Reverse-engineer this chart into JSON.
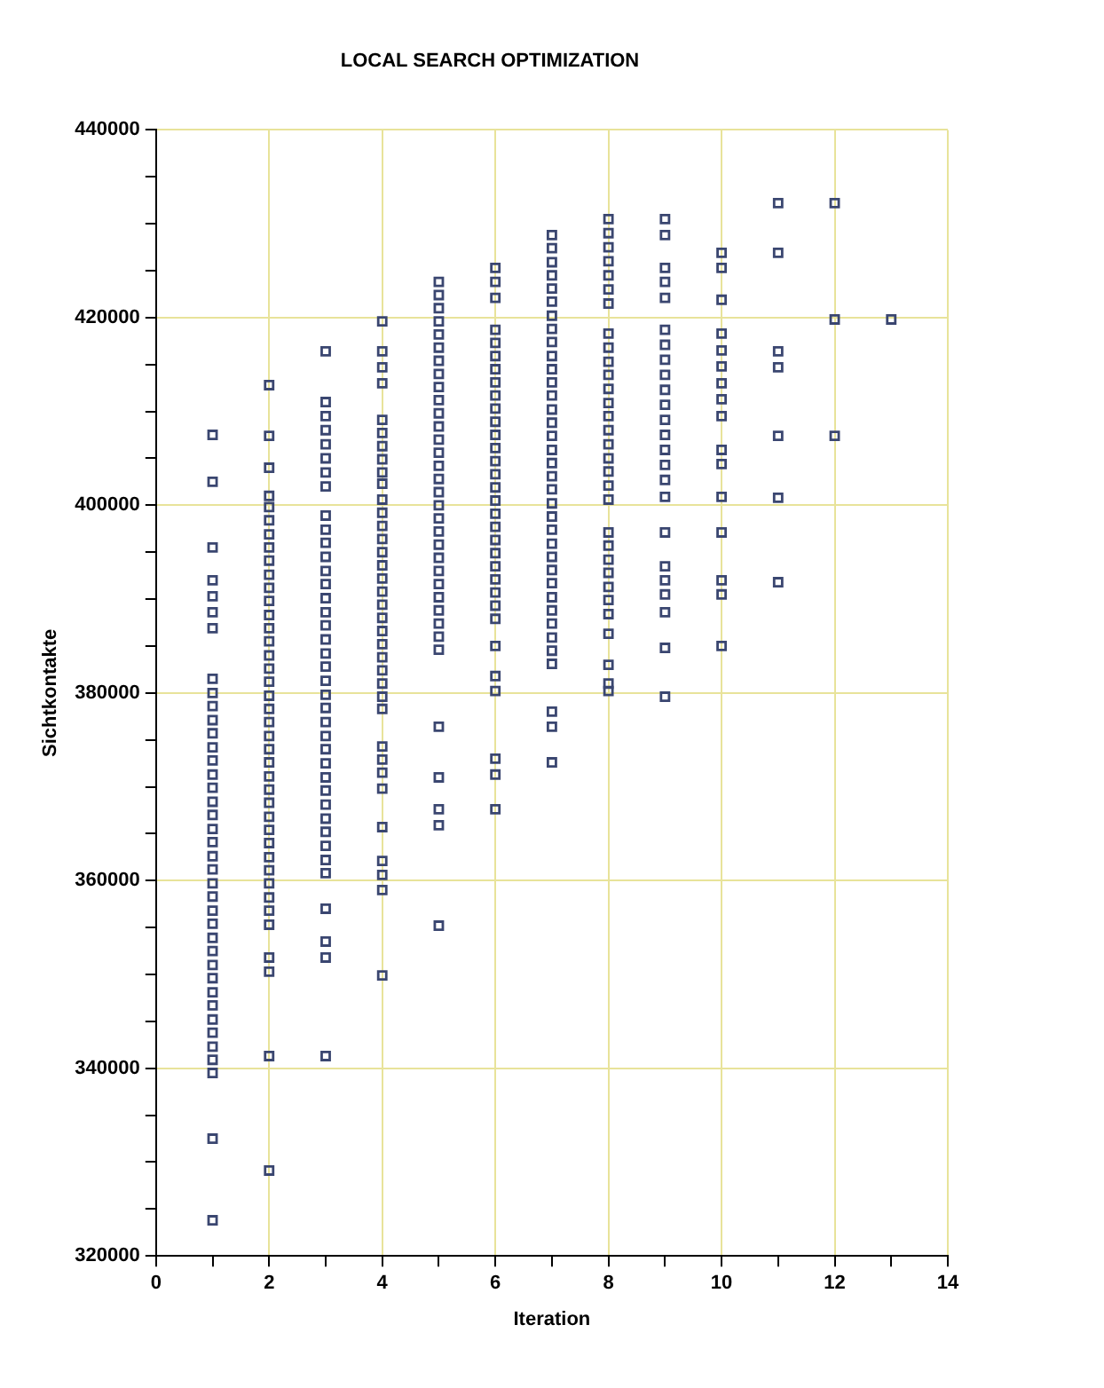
{
  "chart_data": {
    "type": "scatter",
    "title": "LOCAL SEARCH OPTIMIZATION",
    "xlabel": "Iteration",
    "ylabel": "Sichtkontakte",
    "marker": "square",
    "grid": true,
    "legend": false,
    "xlim": [
      0,
      14
    ],
    "xticks": [
      0,
      {
        "value": 1,
        "label": null
      },
      2,
      {
        "value": 3,
        "label": null
      },
      4,
      {
        "value": 5,
        "label": null
      },
      6,
      {
        "value": 7,
        "label": null
      },
      8,
      {
        "value": 9,
        "label": null
      },
      10,
      {
        "value": 11,
        "label": null
      },
      12,
      {
        "value": 13,
        "label": null
      },
      14
    ],
    "ylim": [
      320000,
      440000
    ],
    "yticks": [
      320000,
      {
        "value": 325000,
        "label": null
      },
      {
        "value": 330000,
        "label": null
      },
      {
        "value": 335000,
        "label": null
      },
      340000,
      {
        "value": 345000,
        "label": null
      },
      {
        "value": 350000,
        "label": null
      },
      {
        "value": 355000,
        "label": null
      },
      360000,
      {
        "value": 365000,
        "label": null
      },
      {
        "value": 370000,
        "label": null
      },
      {
        "value": 375000,
        "label": null
      },
      380000,
      {
        "value": 385000,
        "label": null
      },
      {
        "value": 390000,
        "label": null
      },
      {
        "value": 395000,
        "label": null
      },
      400000,
      {
        "value": 405000,
        "label": null
      },
      {
        "value": 410000,
        "label": null
      },
      {
        "value": 415000,
        "label": null
      },
      420000,
      {
        "value": 425000,
        "label": null
      },
      {
        "value": 430000,
        "label": null
      },
      {
        "value": 435000,
        "label": null
      },
      440000
    ],
    "series": [
      {
        "color": "#3a4670",
        "x": [
          1,
          1,
          1,
          1,
          1,
          1,
          1,
          1,
          1,
          1,
          1,
          1,
          1,
          1,
          1,
          1,
          1,
          1,
          1,
          1,
          1,
          1,
          1,
          1,
          1,
          1,
          1,
          1,
          1,
          1,
          1,
          1,
          1,
          1,
          1,
          1,
          1,
          1,
          1
        ],
        "values": [
          407500,
          402500,
          395500,
          392000,
          390300,
          388600,
          386900,
          381500,
          380000,
          378600,
          377100,
          375700,
          374200,
          372800,
          371300,
          369900,
          368400,
          367000,
          365500,
          364100,
          362600,
          361200,
          359700,
          358300,
          356800,
          355400,
          353900,
          352500,
          351000,
          349600,
          348100,
          346700,
          345200,
          343800,
          342300,
          340900,
          339500,
          332500,
          323800
        ]
      },
      {
        "color": "#3a4670",
        "x": [
          2,
          2,
          2,
          2,
          2,
          2,
          2,
          2,
          2,
          2,
          2,
          2,
          2,
          2,
          2,
          2,
          2,
          2,
          2,
          2,
          2,
          2,
          2,
          2,
          2,
          2,
          2,
          2,
          2,
          2,
          2,
          2,
          2,
          2,
          2,
          2,
          2,
          2,
          2,
          2
        ],
        "values": [
          412800,
          407400,
          404000,
          401000,
          399800,
          398400,
          396900,
          395500,
          394100,
          392600,
          391200,
          389800,
          388300,
          386900,
          385500,
          384000,
          382600,
          381200,
          379700,
          378300,
          376900,
          375400,
          374000,
          372600,
          371100,
          369700,
          368300,
          366800,
          365400,
          364000,
          362500,
          361100,
          359700,
          358200,
          356800,
          355300,
          351800,
          350300,
          341300,
          329100
        ]
      },
      {
        "color": "#3a4670",
        "x": [
          3,
          3,
          3,
          3,
          3,
          3,
          3,
          3,
          3,
          3,
          3,
          3,
          3,
          3,
          3,
          3,
          3,
          3,
          3,
          3,
          3,
          3,
          3,
          3,
          3,
          3,
          3,
          3,
          3,
          3,
          3,
          3,
          3,
          3,
          3,
          3,
          3,
          3,
          3
        ],
        "values": [
          416400,
          411000,
          409500,
          408000,
          406500,
          405000,
          403500,
          402000,
          398900,
          397400,
          396000,
          394500,
          393000,
          391600,
          390100,
          388600,
          387200,
          385700,
          384200,
          382800,
          381300,
          379800,
          378400,
          376900,
          375400,
          374000,
          372500,
          371000,
          369600,
          368100,
          366600,
          365200,
          363700,
          362200,
          360800,
          357000,
          353500,
          351800,
          341300
        ]
      },
      {
        "color": "#3a4670",
        "x": [
          4,
          4,
          4,
          4,
          4,
          4,
          4,
          4,
          4,
          4,
          4,
          4,
          4,
          4,
          4,
          4,
          4,
          4,
          4,
          4,
          4,
          4,
          4,
          4,
          4,
          4,
          4,
          4,
          4,
          4,
          4,
          4,
          4,
          4,
          4,
          4
        ],
        "values": [
          419600,
          416400,
          414700,
          413000,
          409100,
          407700,
          406300,
          404900,
          403500,
          402300,
          400600,
          399200,
          397800,
          396400,
          395000,
          393600,
          392200,
          390800,
          389400,
          388000,
          386600,
          385200,
          383800,
          382400,
          381000,
          379600,
          378300,
          374300,
          372900,
          371500,
          369800,
          365700,
          362100,
          360600,
          359000,
          349900
        ]
      },
      {
        "color": "#3a4670",
        "x": [
          5,
          5,
          5,
          5,
          5,
          5,
          5,
          5,
          5,
          5,
          5,
          5,
          5,
          5,
          5,
          5,
          5,
          5,
          5,
          5,
          5,
          5,
          5,
          5,
          5,
          5,
          5,
          5,
          5,
          5,
          5,
          5,
          5,
          5
        ],
        "values": [
          423800,
          422400,
          421000,
          419600,
          418200,
          416800,
          415400,
          414000,
          412600,
          411200,
          409800,
          408400,
          407000,
          405600,
          404200,
          402800,
          401400,
          400000,
          398600,
          397200,
          395800,
          394400,
          393000,
          391600,
          390200,
          388800,
          387400,
          386000,
          384600,
          376400,
          371000,
          367600,
          365900,
          355200
        ]
      },
      {
        "color": "#3a4670",
        "x": [
          6,
          6,
          6,
          6,
          6,
          6,
          6,
          6,
          6,
          6,
          6,
          6,
          6,
          6,
          6,
          6,
          6,
          6,
          6,
          6,
          6,
          6,
          6,
          6,
          6,
          6,
          6,
          6,
          6,
          6,
          6,
          6
        ],
        "values": [
          425300,
          423800,
          422100,
          418700,
          417300,
          415900,
          414500,
          413100,
          411700,
          410300,
          408900,
          407500,
          406100,
          404700,
          403300,
          401900,
          400500,
          399100,
          397700,
          396300,
          394900,
          393500,
          392100,
          390700,
          389300,
          387900,
          385000,
          381800,
          380200,
          373000,
          371300,
          367600
        ]
      },
      {
        "color": "#3a4670",
        "x": [
          7,
          7,
          7,
          7,
          7,
          7,
          7,
          7,
          7,
          7,
          7,
          7,
          7,
          7,
          7,
          7,
          7,
          7,
          7,
          7,
          7,
          7,
          7,
          7,
          7,
          7,
          7,
          7,
          7,
          7,
          7,
          7,
          7,
          7,
          7,
          7
        ],
        "values": [
          428800,
          427400,
          425900,
          424500,
          423100,
          421700,
          420200,
          418800,
          417400,
          415900,
          414500,
          413100,
          411700,
          410200,
          408800,
          407400,
          405900,
          404500,
          403100,
          401700,
          400200,
          398800,
          397400,
          395900,
          394500,
          393100,
          391700,
          390200,
          388800,
          387400,
          385900,
          384500,
          383100,
          378000,
          376400,
          372600
        ]
      },
      {
        "color": "#3a4670",
        "x": [
          8,
          8,
          8,
          8,
          8,
          8,
          8,
          8,
          8,
          8,
          8,
          8,
          8,
          8,
          8,
          8,
          8,
          8,
          8,
          8,
          8,
          8,
          8,
          8,
          8,
          8,
          8,
          8,
          8,
          8,
          8
        ],
        "values": [
          430500,
          429000,
          427500,
          426000,
          424500,
          423000,
          421500,
          418300,
          416800,
          415300,
          413900,
          412400,
          410900,
          409500,
          408000,
          406500,
          405000,
          403600,
          402100,
          400600,
          397100,
          395700,
          394200,
          392800,
          391300,
          389900,
          388400,
          386300,
          383000,
          381000,
          380200
        ]
      },
      {
        "color": "#3a4670",
        "x": [
          9,
          9,
          9,
          9,
          9,
          9,
          9,
          9,
          9,
          9,
          9,
          9,
          9,
          9,
          9,
          9,
          9,
          9,
          9,
          9,
          9,
          9,
          9,
          9
        ],
        "values": [
          430500,
          428800,
          425300,
          423800,
          422100,
          418700,
          417100,
          415500,
          413900,
          412300,
          410700,
          409100,
          407500,
          405900,
          404300,
          402700,
          400900,
          397100,
          393500,
          392000,
          390500,
          388600,
          384800,
          379600
        ]
      },
      {
        "color": "#3a4670",
        "x": [
          10,
          10,
          10,
          10,
          10,
          10,
          10,
          10,
          10,
          10,
          10,
          10,
          10,
          10,
          10,
          10
        ],
        "values": [
          426900,
          425300,
          421900,
          418300,
          416500,
          414800,
          413000,
          411300,
          409500,
          405900,
          404400,
          400900,
          397100,
          392000,
          390500,
          385000
        ]
      },
      {
        "color": "#3a4670",
        "x": [
          11,
          11,
          11,
          11,
          11,
          11,
          11
        ],
        "values": [
          432200,
          426900,
          416400,
          414700,
          407400,
          400800,
          391800
        ]
      },
      {
        "color": "#3a4670",
        "x": [
          12,
          12,
          12
        ],
        "values": [
          432200,
          419800,
          407400
        ]
      },
      {
        "color": "#3a4670",
        "x": [
          13
        ],
        "values": [
          419800
        ]
      }
    ]
  }
}
